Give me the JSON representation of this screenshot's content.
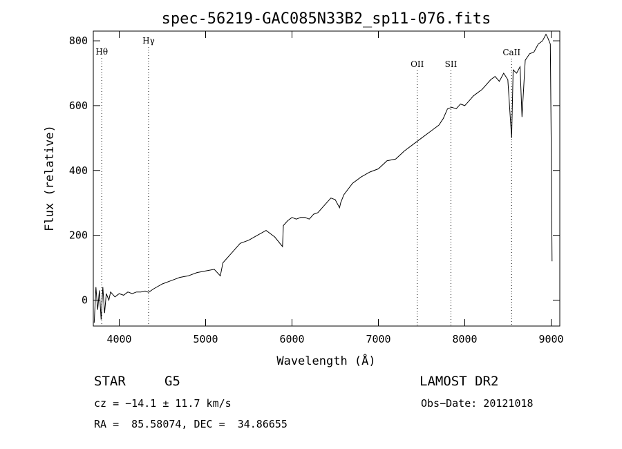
{
  "chart_data": {
    "type": "line",
    "title": "spec-56219-GAC085N33B2_sp11-076.fits",
    "xlabel": "Wavelength (Å)",
    "ylabel": "Flux (relative)",
    "xlim": [
      3700,
      9100
    ],
    "ylim": [
      -80,
      830
    ],
    "x_ticks": [
      4000,
      5000,
      6000,
      7000,
      8000,
      9000
    ],
    "y_ticks": [
      0,
      200,
      400,
      600,
      800
    ],
    "grid": false,
    "spectrum": {
      "x": [
        3710,
        3730,
        3750,
        3770,
        3790,
        3810,
        3830,
        3850,
        3880,
        3900,
        3950,
        4000,
        4050,
        4100,
        4150,
        4200,
        4250,
        4300,
        4340,
        4400,
        4500,
        4600,
        4700,
        4800,
        4900,
        5000,
        5100,
        5170,
        5200,
        5300,
        5400,
        5500,
        5600,
        5700,
        5800,
        5890,
        5900,
        5950,
        6000,
        6050,
        6100,
        6150,
        6200,
        6250,
        6300,
        6350,
        6400,
        6450,
        6500,
        6550,
        6563,
        6600,
        6700,
        6800,
        6900,
        7000,
        7100,
        7200,
        7300,
        7400,
        7500,
        7600,
        7700,
        7750,
        7800,
        7850,
        7900,
        7950,
        8000,
        8050,
        8100,
        8200,
        8300,
        8350,
        8400,
        8450,
        8498,
        8542,
        8560,
        8600,
        8640,
        8662,
        8700,
        8750,
        8800,
        8850,
        8900,
        8940,
        8960,
        8990,
        9000,
        9010
      ],
      "y": [
        -70,
        40,
        -30,
        30,
        -60,
        40,
        -40,
        20,
        0,
        25,
        10,
        20,
        15,
        25,
        20,
        25,
        25,
        28,
        24,
        35,
        50,
        60,
        70,
        75,
        85,
        90,
        95,
        75,
        115,
        145,
        175,
        185,
        200,
        215,
        195,
        165,
        230,
        245,
        255,
        250,
        255,
        255,
        250,
        265,
        270,
        285,
        300,
        315,
        310,
        285,
        300,
        325,
        360,
        380,
        395,
        405,
        430,
        435,
        460,
        480,
        500,
        520,
        540,
        560,
        590,
        595,
        590,
        605,
        600,
        615,
        630,
        650,
        680,
        690,
        675,
        700,
        680,
        500,
        710,
        700,
        720,
        565,
        740,
        760,
        765,
        790,
        800,
        820,
        810,
        790,
        500,
        120
      ]
    },
    "lines": [
      {
        "label": "Hθ",
        "x": 3798
      },
      {
        "label": "Hγ",
        "x": 4340
      },
      {
        "label": "OII",
        "x": 7450
      },
      {
        "label": "SII",
        "x": 7840
      },
      {
        "label": "CaII",
        "x": 8542
      }
    ]
  },
  "info": {
    "object": "STAR",
    "subclass": "G5",
    "survey": "LAMOST DR2",
    "cz": "cz = −14.1 ± 11.7 km/s",
    "obs_date": "Obs−Date: 20121018",
    "coords": "RA =  85.58074, DEC =  34.86655"
  }
}
